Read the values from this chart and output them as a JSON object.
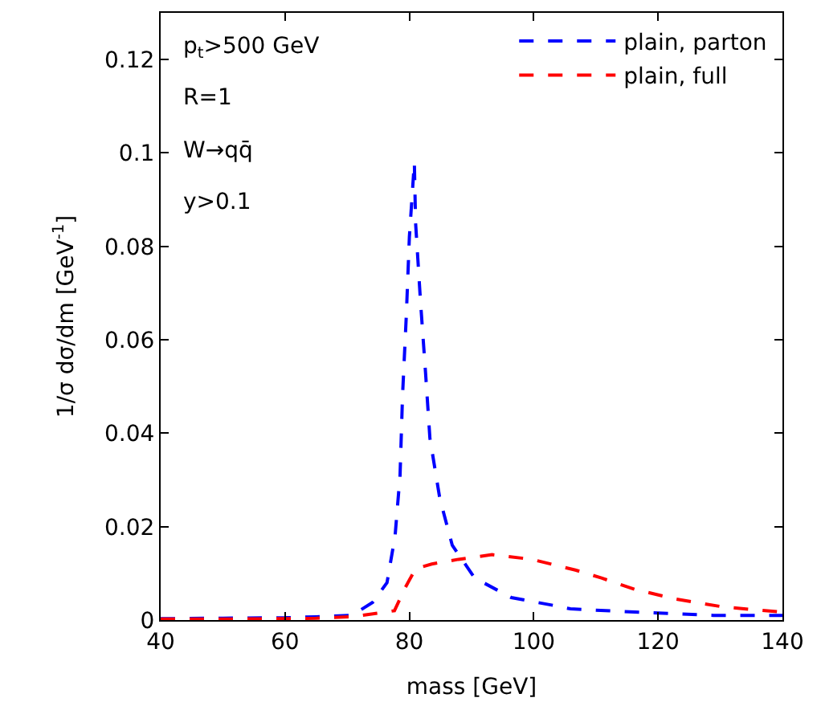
{
  "chart_data": {
    "type": "line",
    "xlabel": "mass [GeV]",
    "ylabel": "1/σ dσ/dm [GeV$^{-1}$]",
    "xlim": [
      40,
      140
    ],
    "xticks": [
      40,
      60,
      80,
      100,
      120,
      140
    ],
    "ylim": [
      0,
      0.13
    ],
    "yticks": [
      0,
      0.02,
      0.04,
      0.06,
      0.08,
      0.1,
      0.12
    ],
    "legend": "top right",
    "line_style": "dashed",
    "marker": "none",
    "annotations": [
      "p$_{t}$>500 GeV",
      "R=1",
      "W→qq̄",
      "y>0.1"
    ],
    "series": [
      {
        "name": "plain, parton",
        "color": "#0000ff",
        "x": [
          40,
          50,
          60,
          65,
          70.8,
          74.1,
          76.4,
          77.7,
          78.5,
          78.9,
          79.5,
          80.0,
          80.8,
          81.0,
          81.8,
          82.6,
          83.3,
          84.9,
          86.9,
          90.5,
          96.4,
          103.3,
          105.9,
          116.2,
          128.9,
          140
        ],
        "values": [
          0.0003,
          0.0004,
          0.0005,
          0.0007,
          0.001,
          0.0038,
          0.008,
          0.018,
          0.031,
          0.048,
          0.065,
          0.082,
          0.098,
          0.085,
          0.068,
          0.053,
          0.039,
          0.026,
          0.016,
          0.009,
          0.0048,
          0.0031,
          0.0024,
          0.0017,
          0.001,
          0.001
        ]
      },
      {
        "name": "plain, full",
        "color": "#ff0000",
        "x": [
          40,
          50,
          60,
          65,
          70.8,
          77.6,
          79.2,
          81.0,
          83.6,
          87.9,
          93.3,
          99.7,
          106.7,
          110.9,
          116.2,
          122.8,
          130.5,
          140
        ],
        "values": [
          0.0002,
          0.0002,
          0.0003,
          0.0004,
          0.0007,
          0.002,
          0.0066,
          0.011,
          0.012,
          0.013,
          0.014,
          0.013,
          0.0107,
          0.009,
          0.0066,
          0.0045,
          0.0028,
          0.0017
        ]
      }
    ]
  }
}
